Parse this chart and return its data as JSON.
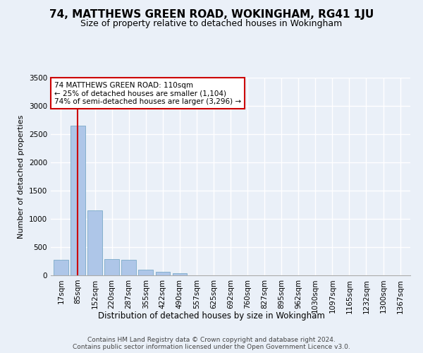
{
  "title1": "74, MATTHEWS GREEN ROAD, WOKINGHAM, RG41 1JU",
  "title2": "Size of property relative to detached houses in Wokingham",
  "xlabel": "Distribution of detached houses by size in Wokingham",
  "ylabel": "Number of detached properties",
  "categories": [
    "17sqm",
    "85sqm",
    "152sqm",
    "220sqm",
    "287sqm",
    "355sqm",
    "422sqm",
    "490sqm",
    "557sqm",
    "625sqm",
    "692sqm",
    "760sqm",
    "827sqm",
    "895sqm",
    "962sqm",
    "1030sqm",
    "1097sqm",
    "1165sqm",
    "1232sqm",
    "1300sqm",
    "1367sqm"
  ],
  "values": [
    270,
    2650,
    1150,
    285,
    280,
    95,
    65,
    40,
    0,
    0,
    0,
    0,
    0,
    0,
    0,
    0,
    0,
    0,
    0,
    0,
    0
  ],
  "bar_color": "#aec6e8",
  "bar_edgecolor": "#7aaac8",
  "vline_x": 1,
  "vline_color": "#cc0000",
  "annotation_text": "74 MATTHEWS GREEN ROAD: 110sqm\n← 25% of detached houses are smaller (1,104)\n74% of semi-detached houses are larger (3,296) →",
  "annotation_box_color": "#ffffff",
  "annotation_box_edgecolor": "#cc0000",
  "ylim": [
    0,
    3500
  ],
  "background_color": "#eaf0f8",
  "fig_background_color": "#eaf0f8",
  "grid_color": "#ffffff",
  "footer1": "Contains HM Land Registry data © Crown copyright and database right 2024.",
  "footer2": "Contains public sector information licensed under the Open Government Licence v3.0.",
  "title1_fontsize": 11,
  "title2_fontsize": 9,
  "ylabel_fontsize": 8,
  "xlabel_fontsize": 8.5,
  "tick_fontsize": 7.5,
  "annotation_fontsize": 7.5,
  "footer_fontsize": 6.5
}
